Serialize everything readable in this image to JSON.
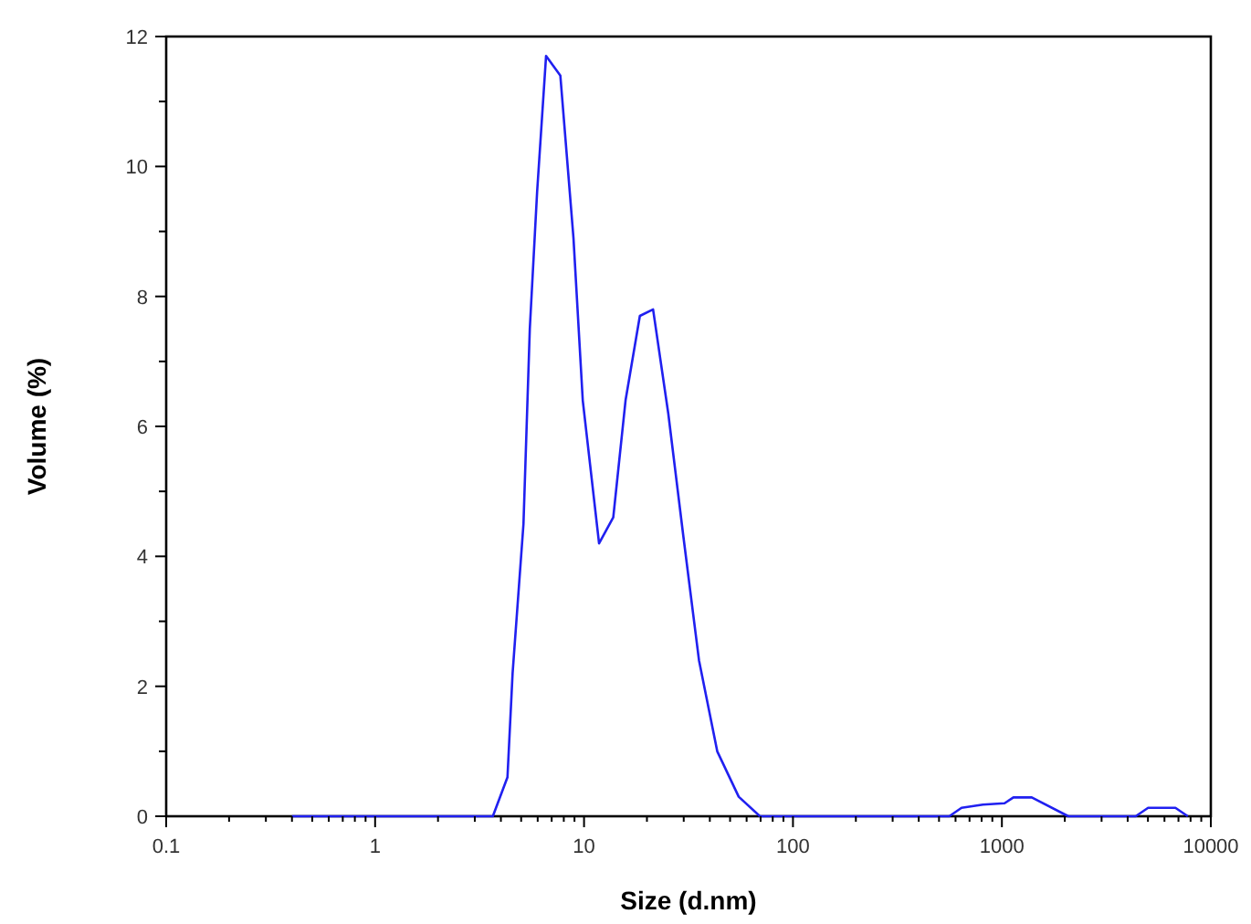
{
  "chart_data": {
    "type": "line",
    "xlabel": "Size (d.nm)",
    "ylabel": "Volume (%)",
    "log": "x",
    "grid": false,
    "xlim": [
      0.1,
      10000
    ],
    "ylim": [
      0,
      12
    ],
    "xticks": [
      0.1,
      {
        "value": 0.2,
        "label": null
      },
      {
        "value": 0.3,
        "label": null
      },
      {
        "value": 0.4,
        "label": null
      },
      {
        "value": 0.5,
        "label": null
      },
      {
        "value": 0.6,
        "label": null
      },
      {
        "value": 0.7,
        "label": null
      },
      {
        "value": 0.8,
        "label": null
      },
      {
        "value": 0.9,
        "label": null
      },
      1,
      {
        "value": 2,
        "label": null
      },
      {
        "value": 3,
        "label": null
      },
      {
        "value": 4,
        "label": null
      },
      {
        "value": 5,
        "label": null
      },
      {
        "value": 6,
        "label": null
      },
      {
        "value": 7,
        "label": null
      },
      {
        "value": 8,
        "label": null
      },
      {
        "value": 9,
        "label": null
      },
      10,
      {
        "value": 20,
        "label": null
      },
      {
        "value": 30,
        "label": null
      },
      {
        "value": 40,
        "label": null
      },
      {
        "value": 50,
        "label": null
      },
      {
        "value": 60,
        "label": null
      },
      {
        "value": 70,
        "label": null
      },
      {
        "value": 80,
        "label": null
      },
      {
        "value": 90,
        "label": null
      },
      100,
      {
        "value": 200,
        "label": null
      },
      {
        "value": 300,
        "label": null
      },
      {
        "value": 400,
        "label": null
      },
      {
        "value": 500,
        "label": null
      },
      {
        "value": 600,
        "label": null
      },
      {
        "value": 700,
        "label": null
      },
      {
        "value": 800,
        "label": null
      },
      {
        "value": 900,
        "label": null
      },
      1000,
      {
        "value": 2000,
        "label": null
      },
      {
        "value": 3000,
        "label": null
      },
      {
        "value": 4000,
        "label": null
      },
      {
        "value": 5000,
        "label": null
      },
      {
        "value": 6000,
        "label": null
      },
      {
        "value": 7000,
        "label": null
      },
      {
        "value": 8000,
        "label": null
      },
      {
        "value": 9000,
        "label": null
      },
      10000
    ],
    "yticks": [
      0,
      {
        "value": 1,
        "label": null
      },
      2,
      {
        "value": 3,
        "label": null
      },
      4,
      {
        "value": 5,
        "label": null
      },
      6,
      {
        "value": 7,
        "label": null
      },
      8,
      {
        "value": 9,
        "label": null
      },
      10,
      {
        "value": 11,
        "label": null
      },
      12
    ],
    "x": [
      0.4,
      3.66,
      4.3,
      4.55,
      5.13,
      5.5,
      5.96,
      6.58,
      7.7,
      8.9,
      9.86,
      11.8,
      13.8,
      15.8,
      18.5,
      21.4,
      25.3,
      29.9,
      35.5,
      43.4,
      55,
      69.5,
      560,
      641,
      811,
      1030,
      1135,
      1390,
      2080,
      4370,
      5010,
      6770,
      7760
    ],
    "series": [
      {
        "color": "#2020f0",
        "values": [
          0,
          0,
          0.6,
          2.2,
          4.5,
          7.5,
          9.6,
          11.7,
          11.4,
          8.9,
          6.4,
          4.2,
          4.6,
          6.4,
          7.7,
          7.8,
          6.2,
          4.3,
          2.4,
          1.0,
          0.3,
          0,
          0,
          0.13,
          0.18,
          0.2,
          0.29,
          0.29,
          0,
          0,
          0.13,
          0.13,
          0
        ]
      }
    ]
  }
}
